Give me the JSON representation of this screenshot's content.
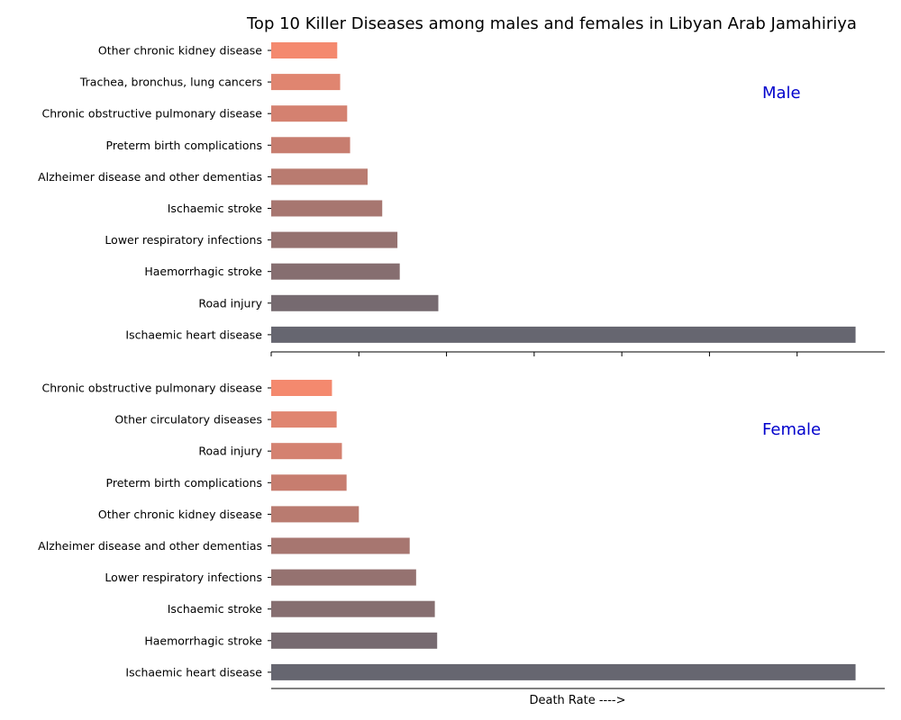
{
  "chart_data": {
    "type": "bar",
    "orientation": "horizontal",
    "title": "Top 10 Killer Diseases among males and females in Libyan Arab Jamahiriya",
    "xlabel": "Death Rate ---->",
    "xlim": [
      0,
      1.05
    ],
    "x_tick_labels_shown": false,
    "colors": [
      "#f4896e",
      "#e08570",
      "#d48170",
      "#c77d6f",
      "#b97b70",
      "#a77670",
      "#957270",
      "#866e70",
      "#766a70",
      "#666670"
    ],
    "panels": [
      {
        "name": "Male",
        "categories": [
          "Other chronic kidney disease",
          "Trachea, bronchus, lung cancers",
          "Chronic obstructive pulmonary disease",
          "Preterm birth complications",
          "Alzheimer disease and other dementias",
          "Ischaemic stroke",
          "Lower respiratory infections",
          "Haemorrhagic stroke",
          "Road injury",
          "Ischaemic heart disease"
        ],
        "values": [
          0.113,
          0.118,
          0.13,
          0.135,
          0.165,
          0.19,
          0.216,
          0.22,
          0.286,
          1.0
        ]
      },
      {
        "name": "Female",
        "categories": [
          "Chronic obstructive pulmonary disease",
          "Other circulatory diseases",
          "Road injury",
          "Preterm birth complications",
          "Other chronic kidney disease",
          "Alzheimer disease and other dementias",
          "Lower respiratory infections",
          "Ischaemic stroke",
          "Haemorrhagic stroke",
          "Ischaemic heart disease"
        ],
        "values": [
          0.104,
          0.112,
          0.121,
          0.129,
          0.15,
          0.237,
          0.248,
          0.28,
          0.284,
          1.0
        ]
      }
    ]
  }
}
